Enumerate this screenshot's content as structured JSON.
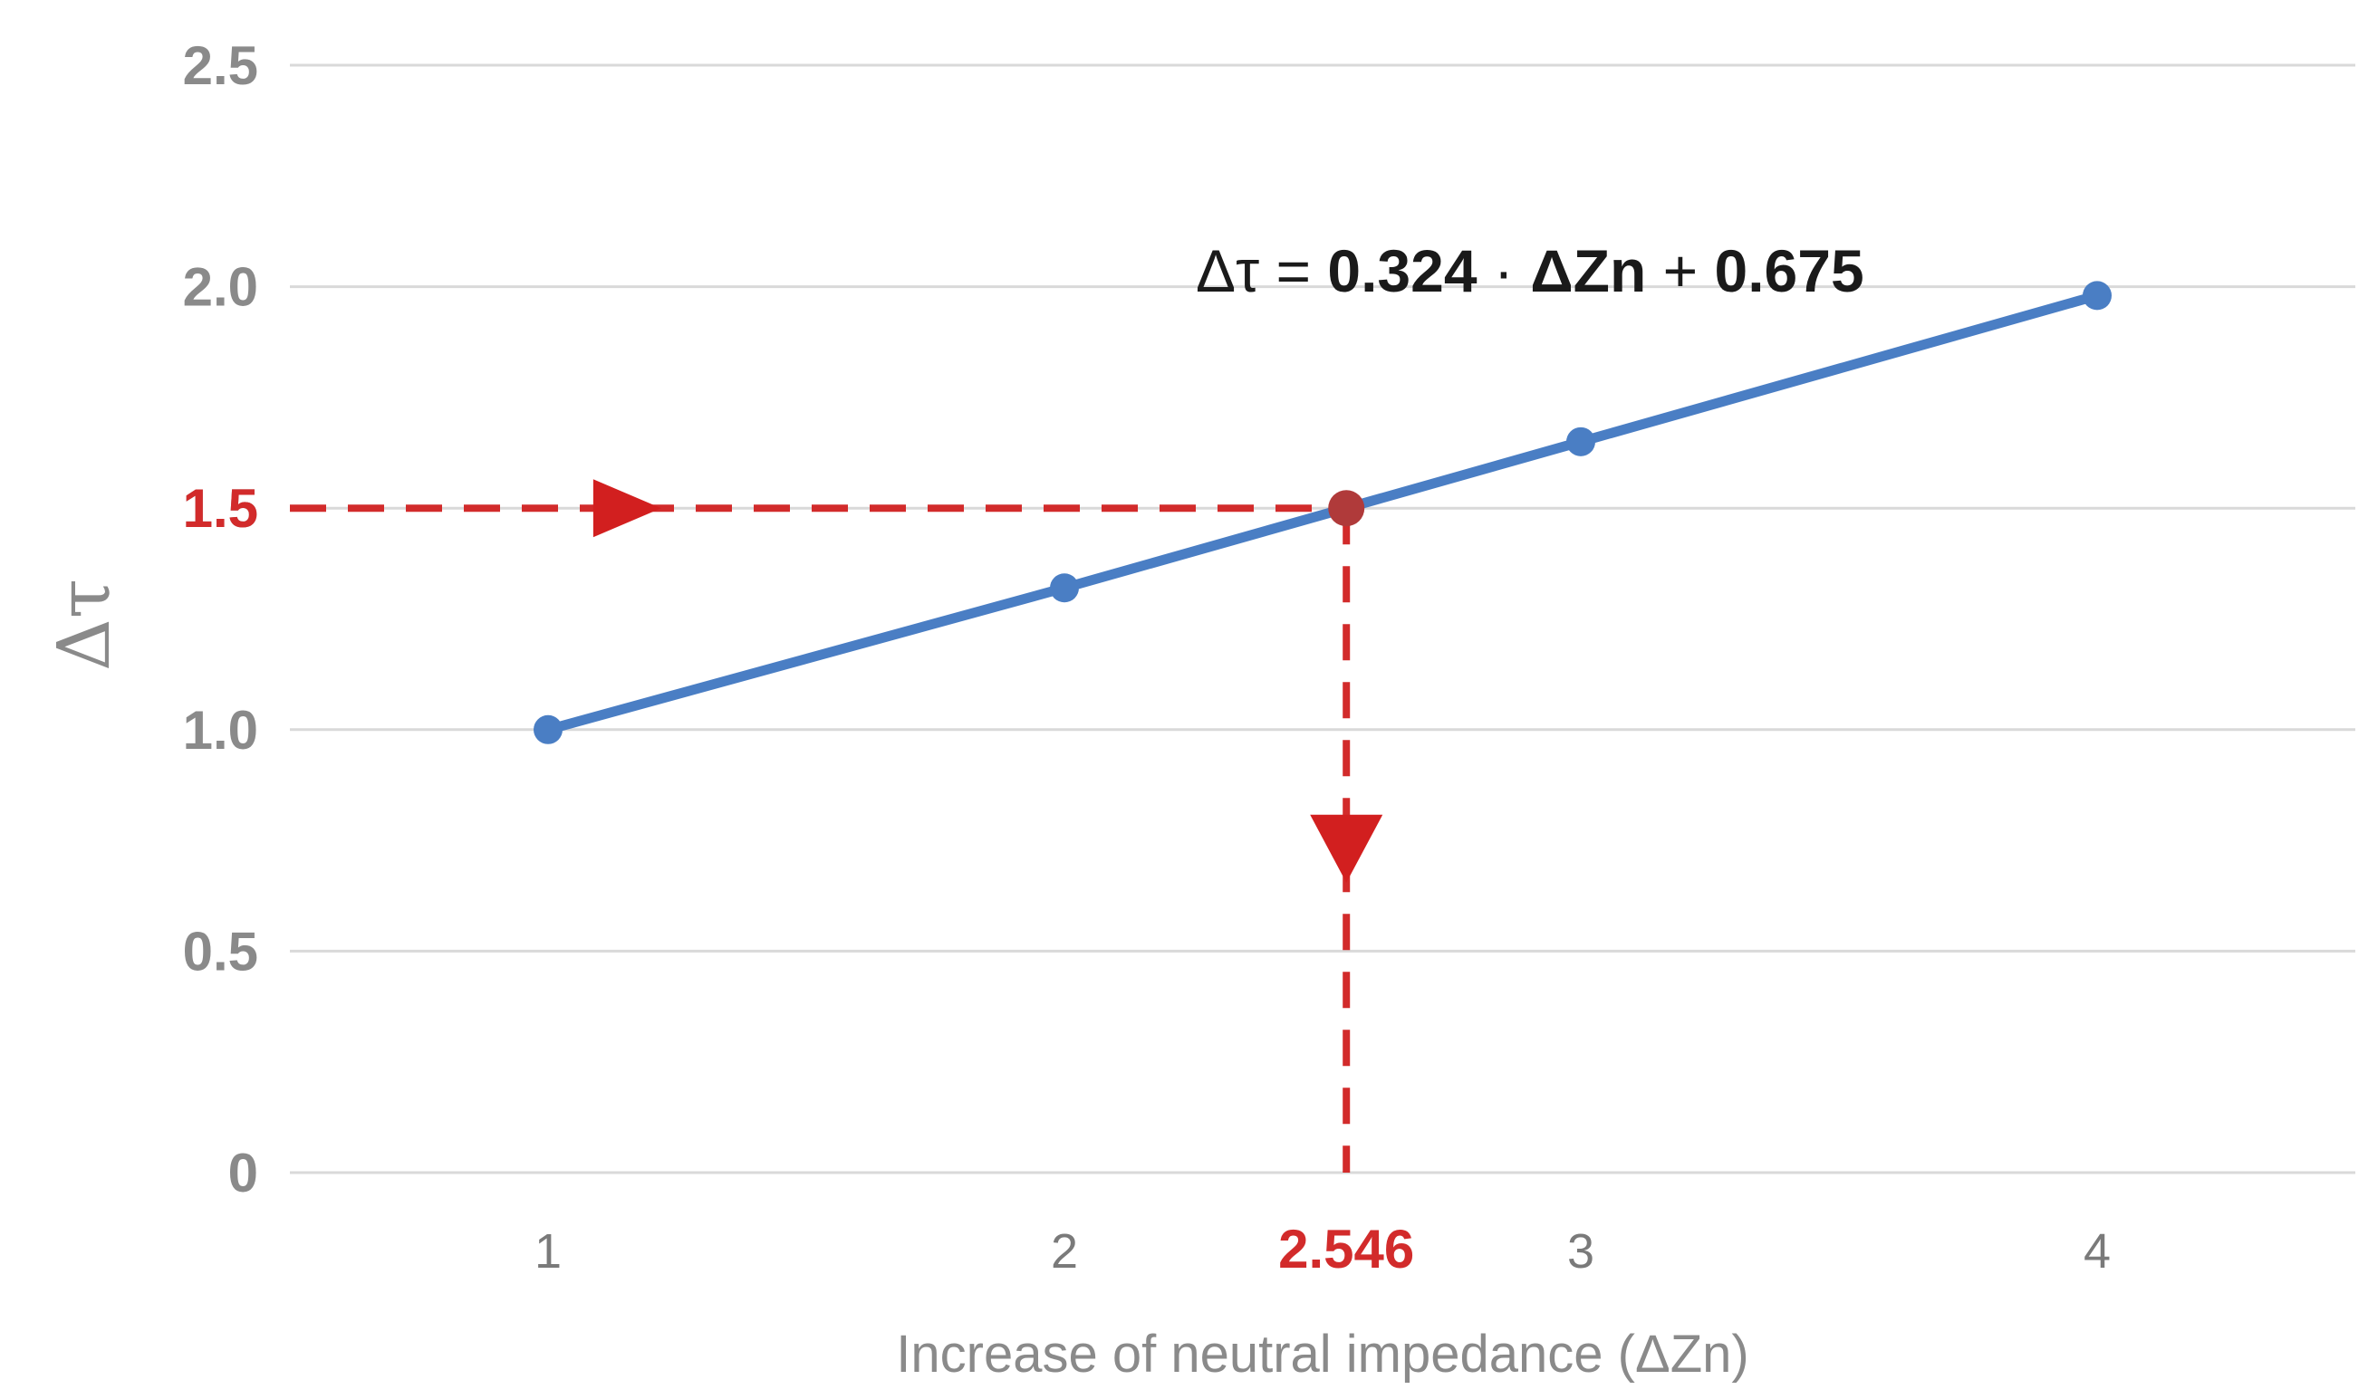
{
  "chart_data": {
    "type": "line",
    "x": [
      1,
      2,
      3,
      4
    ],
    "xticks": [
      "1",
      "2",
      "3",
      "4"
    ],
    "xlim": [
      0.5,
      4.5
    ],
    "ylim": [
      0,
      2.5
    ],
    "yticks": [
      "0",
      "0.5",
      "1.0",
      "1.5",
      "2.0",
      "2.5"
    ],
    "ytick_values": [
      0,
      0.5,
      1.0,
      1.5,
      2.0,
      2.5
    ],
    "grid": true,
    "xlabel": "Increase of neutral impedance (ΔZn)",
    "ylabel": "Δτ",
    "series": [
      {
        "values": [
          1.0,
          1.32,
          1.65,
          1.98
        ],
        "color": "#4a7ec4"
      }
    ],
    "annotation": {
      "equation_lhs": "Δτ = ",
      "equation_coef": "0.324",
      "equation_dot": " · ",
      "equation_var": "ΔZn",
      "equation_plus": " + ",
      "equation_const": "0.675",
      "target_y": 1.5,
      "target_y_label": "1.5",
      "result_x": 2.546,
      "result_x_label": "2.546",
      "color": "#d22b2b"
    }
  }
}
